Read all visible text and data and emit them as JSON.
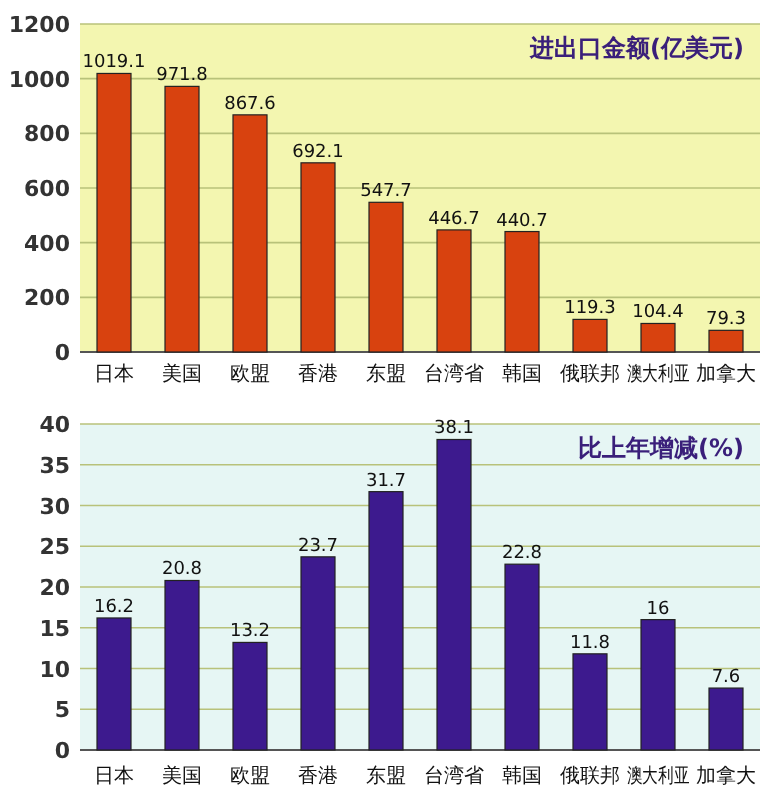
{
  "chart_data": [
    {
      "type": "bar",
      "title": "进出口金额(亿美元)",
      "categories": [
        "日本",
        "美国",
        "欧盟",
        "香港",
        "东盟",
        "台湾省",
        "韩国",
        "俄联邦",
        "澳大利亚",
        "加拿大"
      ],
      "values": [
        1019.1,
        971.8,
        867.6,
        692.1,
        547.7,
        446.7,
        440.7,
        119.3,
        104.4,
        79.3
      ],
      "color": "#d8420f",
      "ylim": [
        0,
        1200
      ],
      "yticks": [
        0,
        200,
        400,
        600,
        800,
        1000,
        1200
      ],
      "grid": "y",
      "data_labels": true
    },
    {
      "type": "bar",
      "title": "比上年增减(%)",
      "categories": [
        "日本",
        "美国",
        "欧盟",
        "香港",
        "东盟",
        "台湾省",
        "韩国",
        "俄联邦",
        "澳大利亚",
        "加拿大"
      ],
      "values": [
        16.2,
        20.8,
        13.2,
        23.7,
        31.7,
        38.1,
        22.8,
        11.8,
        16,
        7.6
      ],
      "color": "#3d1a8e",
      "ylim": [
        0,
        40
      ],
      "yticks": [
        0,
        5,
        10,
        15,
        20,
        25,
        30,
        35,
        40
      ],
      "grid": "y",
      "data_labels": true
    }
  ]
}
